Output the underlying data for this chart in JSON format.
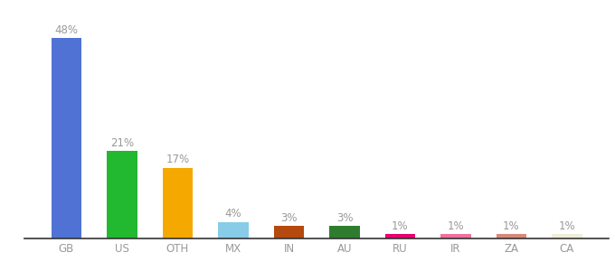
{
  "categories": [
    "GB",
    "US",
    "OTH",
    "MX",
    "IN",
    "AU",
    "RU",
    "IR",
    "ZA",
    "CA"
  ],
  "values": [
    48,
    21,
    17,
    4,
    3,
    3,
    1,
    1,
    1,
    1
  ],
  "labels": [
    "48%",
    "21%",
    "17%",
    "4%",
    "3%",
    "3%",
    "1%",
    "1%",
    "1%",
    "1%"
  ],
  "bar_colors": [
    "#4f72d4",
    "#22b830",
    "#f5a800",
    "#88cce8",
    "#b5490e",
    "#2e7d2e",
    "#e8006e",
    "#f070a0",
    "#d98878",
    "#f0eed8"
  ],
  "ylim": [
    0,
    52
  ],
  "background_color": "#ffffff",
  "label_fontsize": 8.5,
  "tick_fontsize": 8.5,
  "bar_width": 0.55,
  "label_color": "#999999",
  "tick_color": "#999999"
}
